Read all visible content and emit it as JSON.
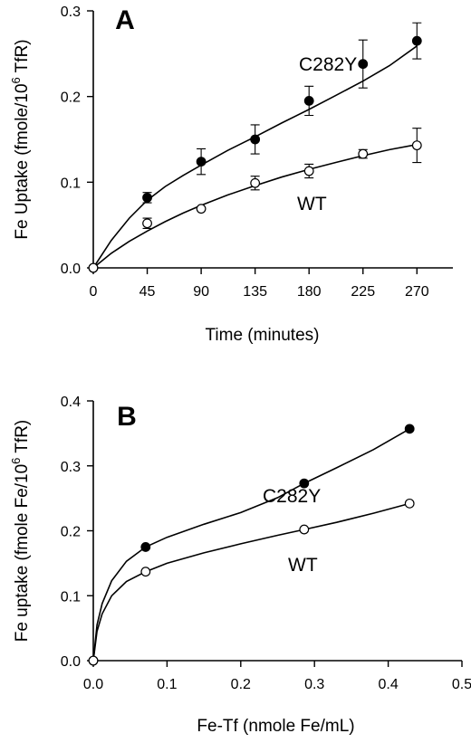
{
  "chart_data": [
    {
      "type": "scatter",
      "panel_label": "A",
      "xlabel": "Time (minutes)",
      "ylabel": "Fe Uptake (fmole/10^6 TfR)",
      "ylabel_parts": [
        "Fe Uptake (fmole/10",
        "6",
        " TfR)"
      ],
      "xlim": [
        0,
        300
      ],
      "ylim": [
        0,
        0.3
      ],
      "x_ticks": [
        0,
        45,
        90,
        135,
        180,
        225,
        270
      ],
      "x_tick_labels": [
        "0",
        "45",
        "90",
        "135",
        "180",
        "225",
        "270"
      ],
      "y_ticks": [
        0,
        0.1,
        0.2,
        0.3
      ],
      "y_tick_labels": [
        "0.0",
        "0.1",
        "0.2",
        "0.3"
      ],
      "series": [
        {
          "name": "C282Y",
          "marker": "filled-circle",
          "x": [
            0,
            45,
            90,
            135,
            180,
            225,
            270
          ],
          "y": [
            0,
            0.082,
            0.124,
            0.15,
            0.195,
            0.238,
            0.265
          ],
          "err": [
            0,
            0.006,
            0.015,
            0.017,
            0.017,
            0.028,
            0.021
          ],
          "fit": [
            [
              0,
              0
            ],
            [
              15,
              0.032
            ],
            [
              30,
              0.058
            ],
            [
              45,
              0.079
            ],
            [
              60,
              0.095
            ],
            [
              75,
              0.108
            ],
            [
              90,
              0.12
            ],
            [
              112,
              0.137
            ],
            [
              135,
              0.153
            ],
            [
              157,
              0.169
            ],
            [
              180,
              0.185
            ],
            [
              202,
              0.201
            ],
            [
              225,
              0.218
            ],
            [
              247,
              0.236
            ],
            [
              270,
              0.259
            ]
          ]
        },
        {
          "name": "WT",
          "marker": "open-circle",
          "x": [
            0,
            45,
            90,
            135,
            180,
            225,
            270
          ],
          "y": [
            0,
            0.052,
            0.069,
            0.099,
            0.113,
            0.133,
            0.143
          ],
          "err": [
            0,
            0.006,
            0,
            0.008,
            0.008,
            0.005,
            0.02
          ],
          "fit": [
            [
              0,
              0
            ],
            [
              15,
              0.017
            ],
            [
              30,
              0.031
            ],
            [
              45,
              0.043
            ],
            [
              60,
              0.054
            ],
            [
              75,
              0.064
            ],
            [
              90,
              0.073
            ],
            [
              112,
              0.085
            ],
            [
              135,
              0.096
            ],
            [
              157,
              0.106
            ],
            [
              180,
              0.115
            ],
            [
              202,
              0.123
            ],
            [
              225,
              0.131
            ],
            [
              247,
              0.138
            ],
            [
              270,
              0.144
            ]
          ]
        }
      ]
    },
    {
      "type": "scatter",
      "panel_label": "B",
      "xlabel": "Fe-Tf (nmole Fe/mL)",
      "ylabel": "Fe uptake (fmole Fe/10^6 TfR)",
      "ylabel_parts": [
        "Fe uptake (fmole Fe/10",
        "6",
        " TfR)"
      ],
      "xlim": [
        0,
        0.5
      ],
      "ylim": [
        0,
        0.4
      ],
      "x_ticks": [
        0,
        0.1,
        0.2,
        0.3,
        0.4,
        0.5
      ],
      "x_tick_labels": [
        "0.0",
        "0.1",
        "0.2",
        "0.3",
        "0.4",
        "0.5"
      ],
      "y_ticks": [
        0,
        0.1,
        0.2,
        0.3,
        0.4
      ],
      "y_tick_labels": [
        "0.0",
        "0.1",
        "0.2",
        "0.3",
        "0.4"
      ],
      "series": [
        {
          "name": "C282Y",
          "marker": "filled-circle",
          "x": [
            0,
            0.071,
            0.286,
            0.429
          ],
          "y": [
            0,
            0.175,
            0.273,
            0.357
          ],
          "err": [
            0,
            0,
            0,
            0
          ],
          "fit": [
            [
              0,
              0
            ],
            [
              0.005,
              0.055
            ],
            [
              0.012,
              0.088
            ],
            [
              0.025,
              0.123
            ],
            [
              0.045,
              0.153
            ],
            [
              0.071,
              0.175
            ],
            [
              0.1,
              0.19
            ],
            [
              0.15,
              0.21
            ],
            [
              0.2,
              0.228
            ],
            [
              0.25,
              0.251
            ],
            [
              0.286,
              0.273
            ],
            [
              0.33,
              0.297
            ],
            [
              0.38,
              0.325
            ],
            [
              0.429,
              0.357
            ]
          ]
        },
        {
          "name": "WT",
          "marker": "open-circle",
          "x": [
            0,
            0.071,
            0.286,
            0.429
          ],
          "y": [
            0,
            0.137,
            0.202,
            0.242
          ],
          "err": [
            0,
            0,
            0,
            0
          ],
          "fit": [
            [
              0,
              0
            ],
            [
              0.005,
              0.045
            ],
            [
              0.012,
              0.072
            ],
            [
              0.025,
              0.1
            ],
            [
              0.045,
              0.122
            ],
            [
              0.071,
              0.137
            ],
            [
              0.1,
              0.15
            ],
            [
              0.15,
              0.166
            ],
            [
              0.2,
              0.18
            ],
            [
              0.25,
              0.193
            ],
            [
              0.286,
              0.202
            ],
            [
              0.33,
              0.213
            ],
            [
              0.38,
              0.227
            ],
            [
              0.429,
              0.242
            ]
          ]
        }
      ]
    }
  ]
}
